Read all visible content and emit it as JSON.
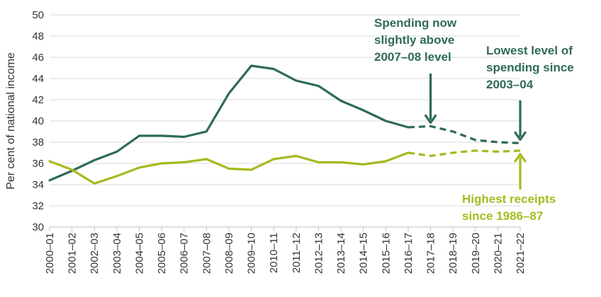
{
  "chart_data": {
    "type": "line",
    "title": "",
    "xlabel": "",
    "ylabel": "Per cent of national income",
    "ylim": [
      30,
      50
    ],
    "yticks": [
      30,
      32,
      34,
      36,
      38,
      40,
      42,
      44,
      46,
      48,
      50
    ],
    "grid": "horizontal",
    "categories": [
      "2000–01",
      "2001–02",
      "2002–03",
      "2003–04",
      "2004–05",
      "2005–06",
      "2006–07",
      "2007–08",
      "2008–09",
      "2009–10",
      "2010–11",
      "2011–12",
      "2012–13",
      "2013–14",
      "2014–15",
      "2015–16",
      "2016–17",
      "2017–18",
      "2018–19",
      "2019–20",
      "2020–21",
      "2021–22"
    ],
    "forecast_from_index": 16,
    "series": [
      {
        "key": "spending",
        "color": "#2e6b52",
        "values": [
          34.4,
          35.3,
          36.3,
          37.1,
          38.6,
          38.6,
          38.5,
          39.0,
          42.6,
          45.2,
          44.9,
          43.8,
          43.3,
          41.9,
          41.0,
          40.0,
          39.4,
          39.5,
          39.0,
          38.2,
          38.0,
          37.9
        ]
      },
      {
        "key": "receipts",
        "color": "#a8b91e",
        "values": [
          36.2,
          35.4,
          34.1,
          34.8,
          35.6,
          36.0,
          36.1,
          36.4,
          35.5,
          35.4,
          36.4,
          36.7,
          36.1,
          36.1,
          35.9,
          36.2,
          37.0,
          36.7,
          37.0,
          37.2,
          37.1,
          37.2
        ]
      }
    ],
    "annotations": [
      {
        "key": "spending-above-2007",
        "lines": [
          "Spending now",
          "slightly above",
          "2007–08 level"
        ],
        "color": "#2e6b52",
        "arrow_index": 17,
        "arrow_series": "spending"
      },
      {
        "key": "lowest-spending",
        "lines": [
          "Lowest level of",
          "spending since",
          "2003–04"
        ],
        "color": "#2e6b52",
        "arrow_index": 21,
        "arrow_series": "spending"
      },
      {
        "key": "highest-receipts",
        "lines": [
          "Highest receipts",
          "since 1986–87"
        ],
        "color": "#a8b91e",
        "arrow_index": 21,
        "arrow_series": "receipts"
      }
    ]
  }
}
